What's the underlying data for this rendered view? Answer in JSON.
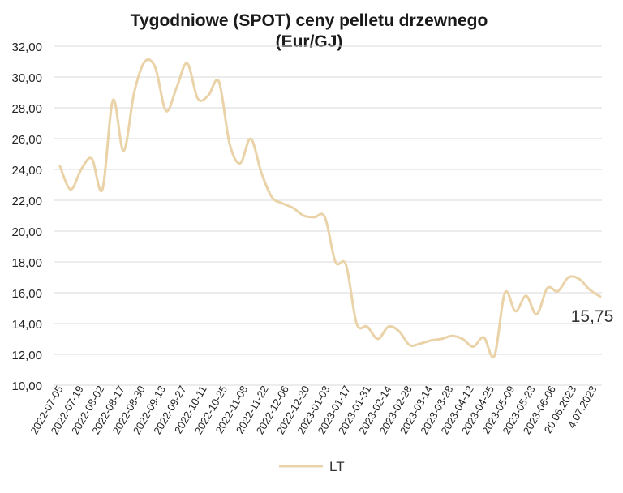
{
  "chart_data": {
    "type": "line",
    "title_line1": "Tygodniowe (SPOT) ceny pelletu drzewnego",
    "title_line2": "(Eur/GJ)",
    "ylim": [
      10,
      32
    ],
    "yticks": [
      "10,00",
      "12,00",
      "14,00",
      "16,00",
      "18,00",
      "20,00",
      "22,00",
      "24,00",
      "26,00",
      "28,00",
      "30,00",
      "32,00"
    ],
    "ytick_values": [
      10,
      12,
      14,
      16,
      18,
      20,
      22,
      24,
      26,
      28,
      30,
      32
    ],
    "grid": true,
    "legend_position": "bottom",
    "x_labels": [
      "2022-07-05",
      "2022-07-19",
      "2022-08-02",
      "2022-08-17",
      "2022-08-30",
      "2022-09-13",
      "2022-09-27",
      "2022-10-11",
      "2022-10-25",
      "2022-11-08",
      "2022-11-22",
      "2022-12-06",
      "2022-12-20",
      "2023-01-03",
      "2023-01-17",
      "2023-01-31",
      "2023-02-14",
      "2023-02-28",
      "2023-03-14",
      "2023-03-28",
      "2023-04-12",
      "2023-04-25",
      "2023-05-09",
      "2023-05-23",
      "2023-06-06",
      "20.06.2023",
      "4.07.2023"
    ],
    "series": [
      {
        "name": "LT",
        "color": "#ead3a8",
        "values": [
          24.2,
          22.7,
          24.0,
          24.7,
          22.7,
          28.5,
          25.2,
          29.0,
          31.0,
          30.6,
          27.8,
          29.3,
          30.9,
          28.6,
          28.8,
          29.7,
          25.7,
          24.4,
          26.0,
          23.8,
          22.2,
          21.8,
          21.5,
          21.0,
          20.9,
          20.9,
          18.0,
          17.8,
          14.0,
          13.8,
          13.0,
          13.8,
          13.5,
          12.6,
          12.7,
          12.9,
          13.0,
          13.2,
          13.0,
          12.5,
          13.1,
          11.9,
          16.0,
          14.8,
          15.8,
          14.6,
          16.3,
          16.1,
          17.0,
          16.9,
          16.2,
          15.75
        ]
      }
    ],
    "end_label": "15,75"
  }
}
